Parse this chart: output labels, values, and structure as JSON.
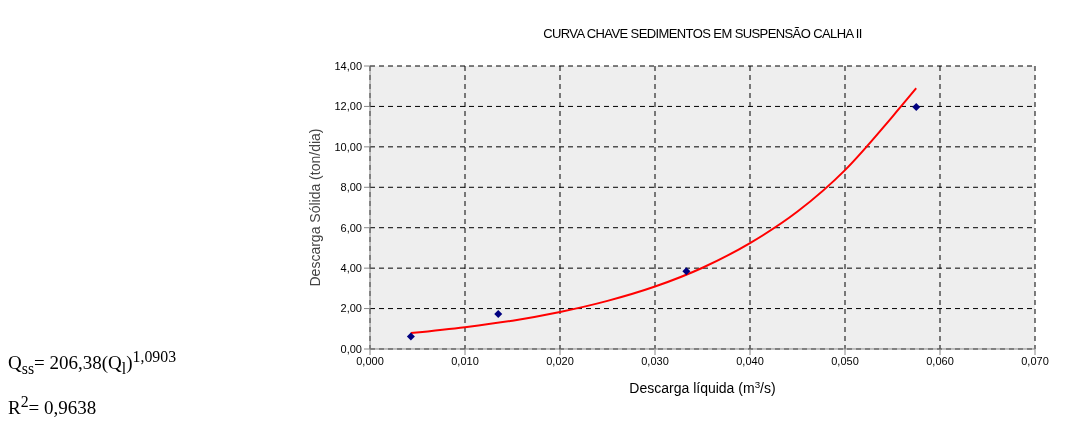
{
  "chart_data": {
    "type": "scatter",
    "title": "CURVA CHAVE SEDIMENTOS EM SUSPENSÃO CALHA II",
    "xlabel": "Descarga líquida (m$^{3}$/s)",
    "ylabel": "Descarga Sólida (ton/dia)",
    "annotations": [
      "Q$_{ss}$= 206,38(Q$_{l}$)$^{1,0903}$",
      "R$^{2}$= 0,9638"
    ],
    "series": [
      {
        "marker": "diamond",
        "color": "#000080",
        "x": [
          0.0043,
          0.0135,
          0.0333,
          0.0575
        ],
        "values": [
          0.62,
          1.73,
          3.85,
          11.97
        ]
      },
      {
        "type": "line",
        "marker": "none",
        "color": "#ff0000",
        "x": [
          0.0043,
          0.01,
          0.015,
          0.02,
          0.025,
          0.03,
          0.035,
          0.04,
          0.045,
          0.05,
          0.055,
          0.0575
        ],
        "values": [
          0.79,
          1.08,
          1.4,
          1.83,
          2.38,
          3.09,
          4.02,
          5.24,
          6.8,
          8.85,
          11.5,
          12.9
        ]
      }
    ],
    "xlim": [
      0,
      0.07
    ],
    "xticks": [
      {
        "value": 0,
        "label": "0,000"
      },
      {
        "value": 0.01,
        "label": "0,010"
      },
      {
        "value": 0.02,
        "label": "0,020"
      },
      {
        "value": 0.03,
        "label": "0,030"
      },
      {
        "value": 0.04,
        "label": "0,040"
      },
      {
        "value": 0.05,
        "label": "0,050"
      },
      {
        "value": 0.06,
        "label": "0,060"
      },
      {
        "value": 0.07,
        "label": "0,070"
      }
    ],
    "ylim": [
      0,
      14
    ],
    "yticks": [
      {
        "value": 0,
        "label": "0,00"
      },
      {
        "value": 2,
        "label": "2,00"
      },
      {
        "value": 4,
        "label": "4,00"
      },
      {
        "value": 6,
        "label": "6,00"
      },
      {
        "value": 8,
        "label": "8,00"
      },
      {
        "value": 10,
        "label": "10,00"
      },
      {
        "value": 12,
        "label": "12,00"
      },
      {
        "value": 14,
        "label": "14,00"
      }
    ],
    "grid": true
  }
}
